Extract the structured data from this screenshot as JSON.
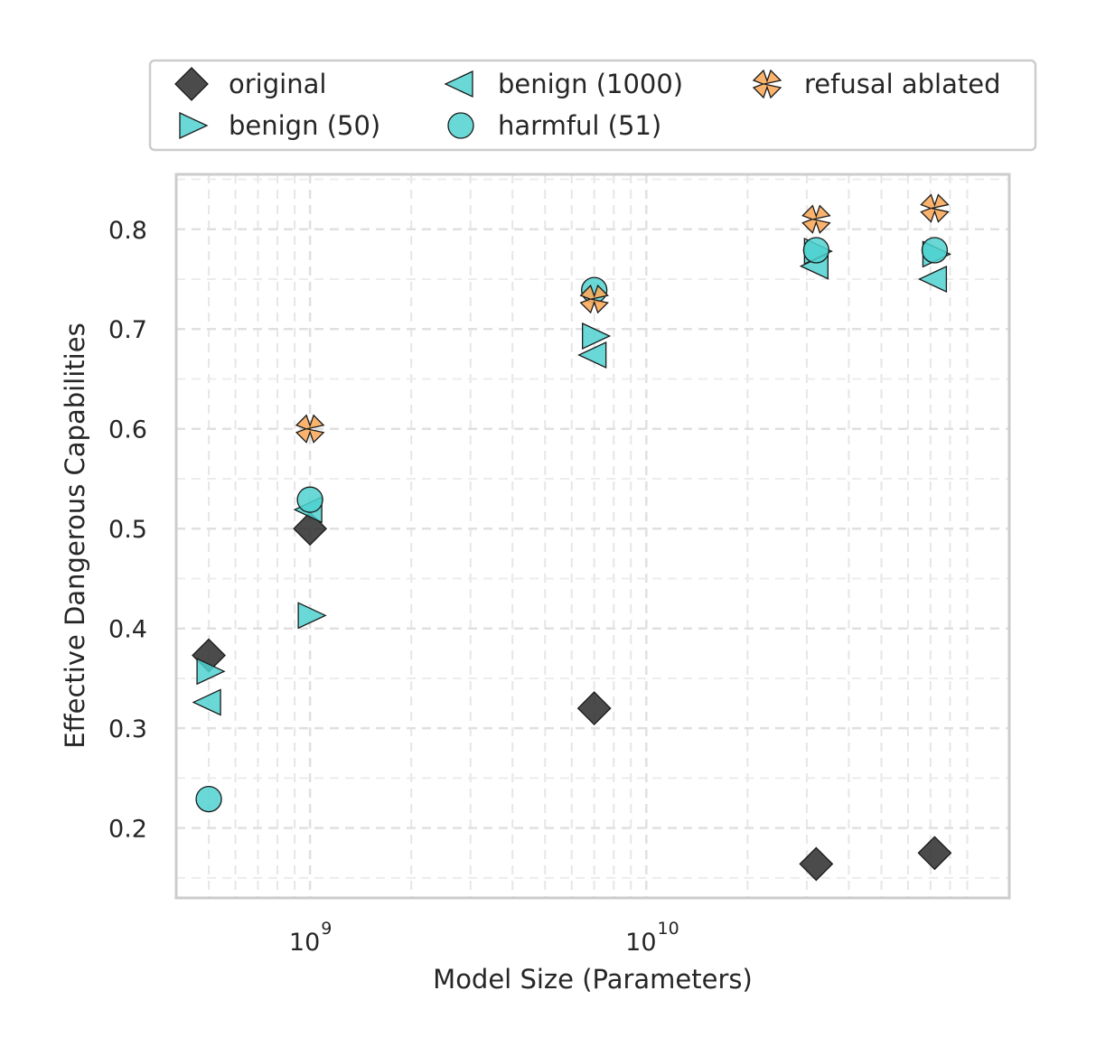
{
  "chart_data": {
    "type": "scatter",
    "title": "",
    "xlabel": "Model Size (Parameters)",
    "ylabel": "Effective Dangerous Capabilities",
    "xscale": "log",
    "xlim": [
      400000000,
      120000000000
    ],
    "ylim": [
      0.13,
      0.855
    ],
    "grid": true,
    "legend_position": "top",
    "x_ticks": [
      {
        "value": 1000000000,
        "base": "10",
        "exp": "9"
      },
      {
        "value": 10000000000,
        "base": "10",
        "exp": "10"
      }
    ],
    "y_ticks": [
      0.2,
      0.3,
      0.4,
      0.5,
      0.6,
      0.7,
      0.8
    ],
    "y_tick_labels": [
      "0.2",
      "0.3",
      "0.4",
      "0.5",
      "0.6",
      "0.7",
      "0.8"
    ],
    "series": [
      {
        "name": "original",
        "marker": "diamond",
        "color": "#2b2b2b",
        "points": [
          [
            500000000,
            0.373
          ],
          [
            1000000000,
            0.5
          ],
          [
            7000000000,
            0.32
          ],
          [
            32000000000,
            0.164
          ],
          [
            72000000000,
            0.175
          ]
        ]
      },
      {
        "name": "benign (50)",
        "marker": "triangle-right",
        "color": "#4fd1cf",
        "points": [
          [
            500000000,
            0.357
          ],
          [
            1000000000,
            0.413
          ],
          [
            7000000000,
            0.693
          ],
          [
            32000000000,
            0.778
          ],
          [
            72000000000,
            0.775
          ]
        ]
      },
      {
        "name": "benign (1000)",
        "marker": "triangle-left",
        "color": "#4fd1cf",
        "points": [
          [
            500000000,
            0.326
          ],
          [
            1000000000,
            0.519
          ],
          [
            7000000000,
            0.674
          ],
          [
            32000000000,
            0.763
          ],
          [
            72000000000,
            0.75
          ]
        ]
      },
      {
        "name": "harmful (51)",
        "marker": "circle",
        "color": "#4fd1cf",
        "points": [
          [
            500000000,
            0.229
          ],
          [
            1000000000,
            0.529
          ],
          [
            7000000000,
            0.739
          ],
          [
            32000000000,
            0.779
          ],
          [
            72000000000,
            0.779
          ]
        ]
      },
      {
        "name": "refusal ablated",
        "marker": "x",
        "color": "#f9ab5c",
        "points": [
          [
            1000000000,
            0.6
          ],
          [
            7000000000,
            0.73
          ],
          [
            32000000000,
            0.81
          ],
          [
            72000000000,
            0.821
          ]
        ]
      }
    ]
  }
}
